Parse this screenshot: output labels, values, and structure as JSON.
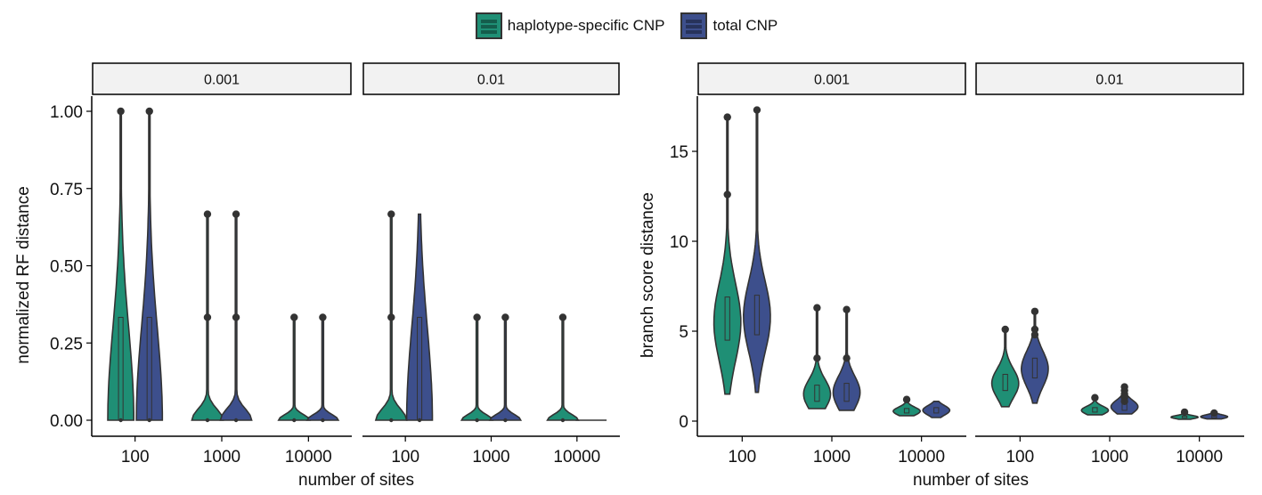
{
  "legend": {
    "items": [
      {
        "label": "haplotype-specific CNP",
        "color": "#1f8f75"
      },
      {
        "label": "total CNP",
        "color": "#3d4f8c"
      }
    ]
  },
  "chart_data": [
    {
      "type": "violin",
      "ylabel": "normalized RF distance",
      "xlabel": "number of sites",
      "ylim": [
        0,
        1.05
      ],
      "yticks": [
        "0.00",
        "0.25",
        "0.50",
        "0.75",
        "1.00"
      ],
      "ytick_values": [
        0,
        0.25,
        0.5,
        0.75,
        1.0
      ],
      "facets": [
        {
          "label": "0.001",
          "categories": [
            "100",
            "1000",
            "10000"
          ],
          "series": [
            {
              "name": "haplotype-specific CNP",
              "violins": [
                {
                  "min": 0,
                  "max": 1.0,
                  "q1": 0,
                  "median": 0,
                  "q3": 0.333,
                  "outliers": [
                    1.0
                  ]
                },
                {
                  "min": 0,
                  "max": 0.667,
                  "q1": 0,
                  "median": 0,
                  "q3": 0,
                  "outliers": [
                    0.333,
                    0.667
                  ]
                },
                {
                  "min": 0,
                  "max": 0.333,
                  "q1": 0,
                  "median": 0,
                  "q3": 0,
                  "outliers": [
                    0.333
                  ]
                }
              ]
            },
            {
              "name": "total CNP",
              "violins": [
                {
                  "min": 0,
                  "max": 1.0,
                  "q1": 0,
                  "median": 0,
                  "q3": 0.333,
                  "outliers": [
                    1.0
                  ]
                },
                {
                  "min": 0,
                  "max": 0.667,
                  "q1": 0,
                  "median": 0,
                  "q3": 0,
                  "outliers": [
                    0.333,
                    0.667
                  ]
                },
                {
                  "min": 0,
                  "max": 0.333,
                  "q1": 0,
                  "median": 0,
                  "q3": 0,
                  "outliers": [
                    0.333
                  ]
                }
              ]
            }
          ]
        },
        {
          "label": "0.01",
          "categories": [
            "100",
            "1000",
            "10000"
          ],
          "series": [
            {
              "name": "haplotype-specific CNP",
              "violins": [
                {
                  "min": 0,
                  "max": 0.667,
                  "q1": 0,
                  "median": 0,
                  "q3": 0,
                  "outliers": [
                    0.333,
                    0.667
                  ]
                },
                {
                  "min": 0,
                  "max": 0.333,
                  "q1": 0,
                  "median": 0,
                  "q3": 0,
                  "outliers": [
                    0.333
                  ]
                },
                {
                  "min": 0,
                  "max": 0.333,
                  "q1": 0,
                  "median": 0,
                  "q3": 0,
                  "outliers": [
                    0.333
                  ]
                }
              ]
            },
            {
              "name": "total CNP",
              "violins": [
                {
                  "min": 0,
                  "max": 0.667,
                  "q1": 0,
                  "median": 0,
                  "q3": 0.333,
                  "outliers": []
                },
                {
                  "min": 0,
                  "max": 0.333,
                  "q1": 0,
                  "median": 0,
                  "q3": 0,
                  "outliers": [
                    0.333
                  ]
                },
                {
                  "min": 0,
                  "max": 0,
                  "q1": 0,
                  "median": 0,
                  "q3": 0,
                  "outliers": []
                }
              ]
            }
          ]
        }
      ]
    },
    {
      "type": "violin",
      "ylabel": "branch score distance",
      "xlabel": "number of sites",
      "ylim": [
        -0.5,
        18
      ],
      "yticks": [
        "0",
        "5",
        "10",
        "15"
      ],
      "ytick_values": [
        0,
        5,
        10,
        15
      ],
      "facets": [
        {
          "label": "0.001",
          "categories": [
            "100",
            "1000",
            "10000"
          ],
          "series": [
            {
              "name": "haplotype-specific CNP",
              "violins": [
                {
                  "min": 1.5,
                  "max": 16.9,
                  "q1": 4.5,
                  "median": 5.5,
                  "q3": 6.9,
                  "outliers": [
                    16.9,
                    12.6
                  ]
                },
                {
                  "min": 0.7,
                  "max": 6.3,
                  "q1": 1.1,
                  "median": 1.5,
                  "q3": 2.0,
                  "outliers": [
                    6.3,
                    3.5
                  ]
                },
                {
                  "min": 0.3,
                  "max": 1.2,
                  "q1": 0.45,
                  "median": 0.55,
                  "q3": 0.7,
                  "outliers": [
                    1.2
                  ]
                }
              ]
            },
            {
              "name": "total CNP",
              "violins": [
                {
                  "min": 1.6,
                  "max": 17.3,
                  "q1": 4.8,
                  "median": 5.8,
                  "q3": 7.0,
                  "outliers": [
                    17.3
                  ]
                },
                {
                  "min": 0.6,
                  "max": 6.2,
                  "q1": 1.1,
                  "median": 1.6,
                  "q3": 2.1,
                  "outliers": [
                    6.2,
                    3.5
                  ]
                },
                {
                  "min": 0.2,
                  "max": 1.1,
                  "q1": 0.45,
                  "median": 0.6,
                  "q3": 0.75,
                  "outliers": []
                }
              ]
            }
          ]
        },
        {
          "label": "0.01",
          "categories": [
            "100",
            "1000",
            "10000"
          ],
          "series": [
            {
              "name": "haplotype-specific CNP",
              "violins": [
                {
                  "min": 0.8,
                  "max": 5.1,
                  "q1": 1.7,
                  "median": 2.1,
                  "q3": 2.6,
                  "outliers": [
                    5.1
                  ]
                },
                {
                  "min": 0.35,
                  "max": 1.3,
                  "q1": 0.5,
                  "median": 0.6,
                  "q3": 0.75,
                  "outliers": [
                    1.3
                  ]
                },
                {
                  "min": 0.1,
                  "max": 0.5,
                  "q1": 0.18,
                  "median": 0.22,
                  "q3": 0.28,
                  "outliers": [
                    0.5
                  ]
                }
              ]
            },
            {
              "name": "total CNP",
              "violins": [
                {
                  "min": 1.0,
                  "max": 6.1,
                  "q1": 2.4,
                  "median": 2.9,
                  "q3": 3.5,
                  "outliers": [
                    6.1,
                    5.1,
                    4.8
                  ]
                },
                {
                  "min": 0.4,
                  "max": 1.9,
                  "q1": 0.6,
                  "median": 0.8,
                  "q3": 1.0,
                  "outliers": [
                    1.9,
                    1.7,
                    1.5,
                    1.3,
                    1.1
                  ]
                },
                {
                  "min": 0.12,
                  "max": 0.45,
                  "q1": 0.18,
                  "median": 0.24,
                  "q3": 0.3,
                  "outliers": [
                    0.45
                  ]
                }
              ]
            }
          ]
        }
      ]
    }
  ]
}
